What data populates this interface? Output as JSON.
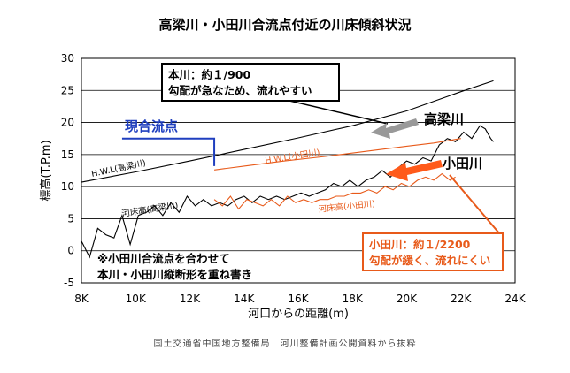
{
  "chart_data": {
    "type": "line",
    "title": "高梁川・小田川合流点付近の川床傾斜状況",
    "xlabel": "河口からの距離(m)",
    "ylabel": "標高(T.P.m)",
    "xlim": [
      8000,
      24000
    ],
    "ylim": [
      -5,
      30
    ],
    "x_ticks": [
      8000,
      10000,
      12000,
      14000,
      16000,
      18000,
      20000,
      22000,
      24000
    ],
    "x_tick_labels": [
      "8K",
      "10K",
      "12K",
      "14K",
      "16K",
      "18K",
      "20K",
      "22K",
      "24K"
    ],
    "y_ticks": [
      -5,
      0,
      5,
      10,
      15,
      20,
      25,
      30
    ],
    "y_tick_labels": [
      "-5",
      "0",
      "5",
      "10",
      "15",
      "20",
      "25",
      "30"
    ],
    "grid": "horizontal",
    "series": [
      {
        "name": "H.W.L(高梁川)",
        "color": "#000000",
        "x": [
          8000,
          10000,
          12000,
          14000,
          16000,
          18000,
          20000,
          22000,
          23200
        ],
        "y": [
          10.7,
          12.3,
          14.0,
          15.8,
          17.6,
          19.5,
          21.8,
          24.8,
          26.5
        ]
      },
      {
        "name": "河床高(高梁川)",
        "color": "#000000",
        "x": [
          8000,
          8300,
          8600,
          8900,
          9200,
          9500,
          9800,
          10100,
          10400,
          10700,
          11000,
          11300,
          11600,
          11900,
          12200,
          12500,
          12800,
          13100,
          13400,
          13700,
          14000,
          14300,
          14600,
          14900,
          15200,
          15500,
          15800,
          16100,
          16400,
          16700,
          17000,
          17300,
          17600,
          17900,
          18200,
          18500,
          18800,
          19100,
          19400,
          19700,
          20000,
          20300,
          20600,
          20900,
          21200,
          21500,
          21800,
          22100,
          22400,
          22700,
          22900,
          23100,
          23200
        ],
        "y": [
          1.5,
          -1.0,
          3.5,
          2.5,
          2.0,
          5.5,
          1.0,
          5.5,
          6.0,
          7.0,
          5.5,
          7.5,
          6.0,
          8.5,
          7.0,
          8.0,
          7.0,
          7.5,
          7.0,
          8.0,
          8.5,
          7.5,
          8.5,
          8.0,
          8.5,
          8.0,
          8.5,
          9.0,
          8.5,
          9.0,
          9.5,
          10.5,
          10.0,
          11.0,
          10.0,
          11.0,
          11.5,
          12.5,
          11.5,
          13.0,
          14.0,
          13.5,
          14.5,
          14.0,
          16.5,
          17.5,
          17.0,
          18.5,
          17.5,
          19.5,
          19.0,
          17.5,
          17.0
        ]
      },
      {
        "name": "H.W.L(小田川)",
        "color": "#e85a1a",
        "x": [
          12900,
          14000,
          15500,
          17000,
          18500,
          20000,
          21000,
          22000
        ],
        "y": [
          12.6,
          13.2,
          14.0,
          14.7,
          15.5,
          16.3,
          16.8,
          17.5
        ]
      },
      {
        "name": "河床高(小田川)",
        "color": "#e85a1a",
        "x": [
          12900,
          13200,
          13500,
          13800,
          14100,
          14400,
          14700,
          15000,
          15300,
          15600,
          15900,
          16200,
          16500,
          16800,
          17100,
          17400,
          17700,
          18000,
          18300,
          18600,
          18900,
          19200,
          19500,
          19800,
          20100,
          20400,
          20700,
          21000,
          21300,
          21600,
          21800
        ],
        "y": [
          8.0,
          7.0,
          8.5,
          6.5,
          8.0,
          7.5,
          7.0,
          8.0,
          7.0,
          8.5,
          7.5,
          8.0,
          7.5,
          8.0,
          8.0,
          8.5,
          8.5,
          9.0,
          9.0,
          9.5,
          9.0,
          10.0,
          9.5,
          10.5,
          10.0,
          11.0,
          11.5,
          11.0,
          12.0,
          11.0,
          11.5
        ]
      }
    ],
    "series_labels": {
      "hwl_takahashi": "H.W.L(高梁川)",
      "bed_takahashi": "河床高(高梁川)",
      "hwl_oda": "H.W.L(小田川)",
      "bed_oda": "河床高(小田川)"
    },
    "confluence": {
      "label": "現合流点",
      "x": 12900,
      "color": "#1f3fbf"
    },
    "annotations": {
      "main_callout_line1": "本川：約１/900",
      "main_callout_line2": "勾配が急なため、流れやすい",
      "oda_callout_line1": "小田川：約１/2200",
      "oda_callout_line2": "勾配が緩く、流れにくい",
      "takahashi_label": "高梁川",
      "oda_label": "小田川",
      "note_line1": "※小田川合流点を合わせて",
      "note_line2": "本川・小田川縦断形を重ね書き"
    },
    "colors": {
      "takahashi": "#000000",
      "oda": "#e85a1a",
      "takahashi_arrow": "#999999",
      "oda_arrow": "#ff5a1a",
      "confluence": "#1f3fbf"
    }
  },
  "source": "国土交通省中国地方整備局　河川整備計画公開資料から抜粋"
}
